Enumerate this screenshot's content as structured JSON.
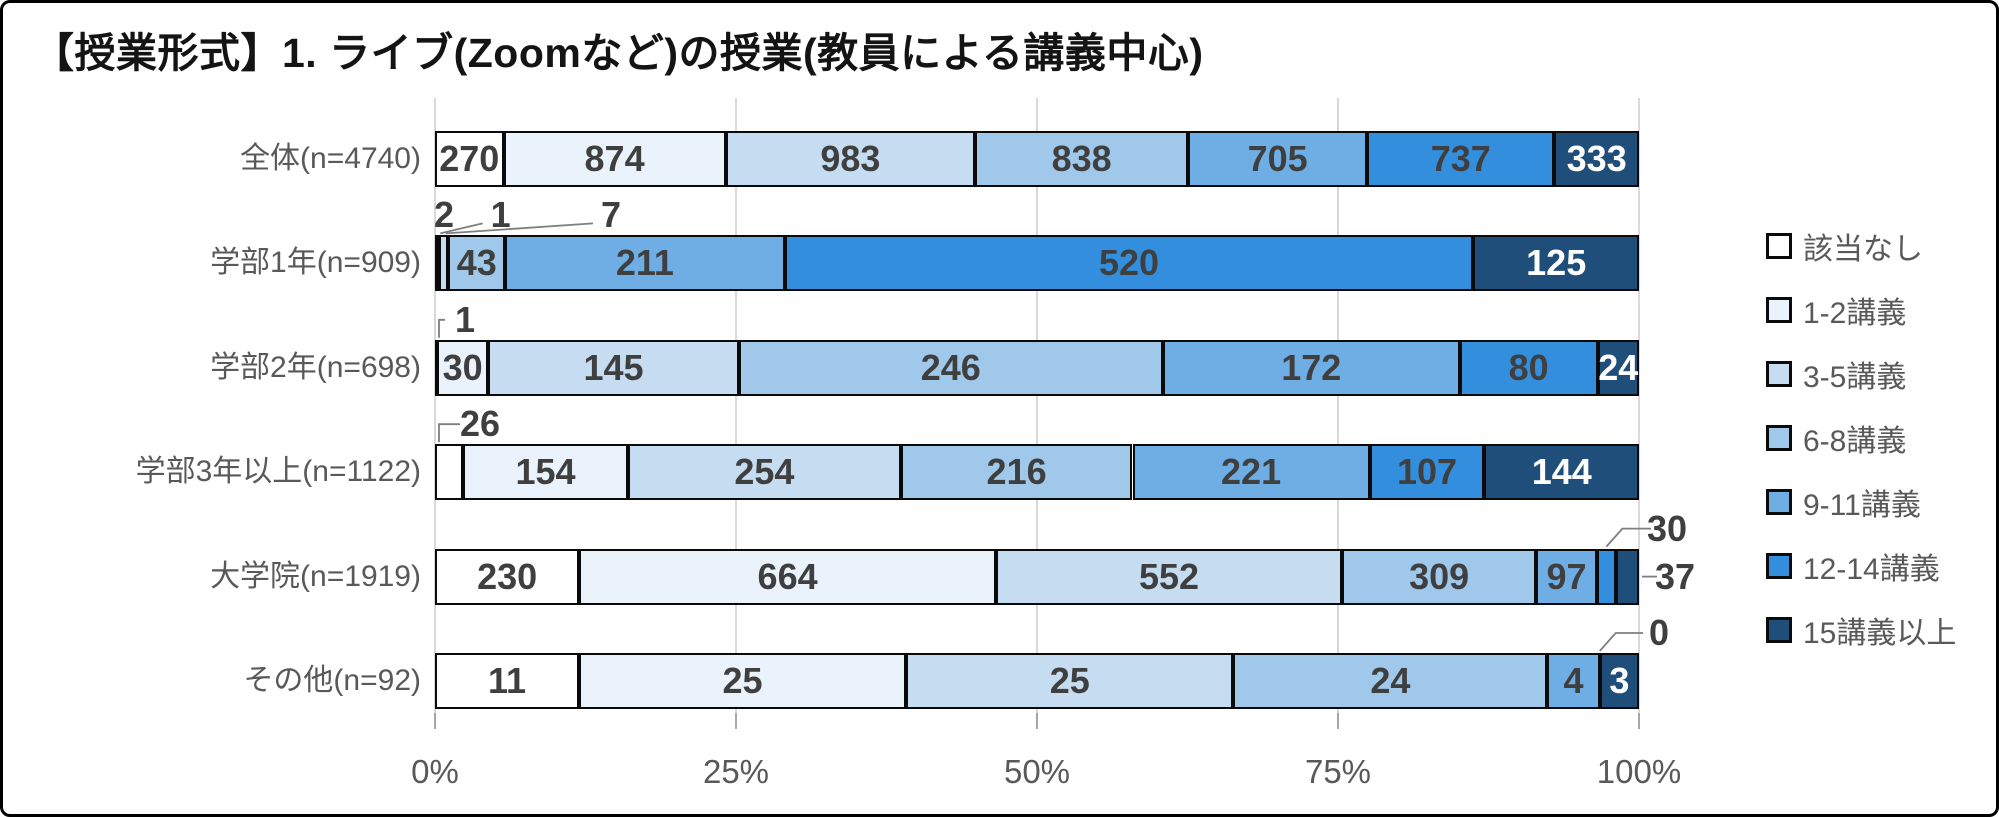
{
  "chart_data": {
    "type": "bar",
    "subtype": "horizontal-100pct-stacked",
    "title": "【授業形式】1. ライブ(Zoomなど)の授業(教員による講義中心)",
    "categories": [
      "全体(n=4740)",
      "学部1年(n=909)",
      "学部2年(n=698)",
      "学部3年以上(n=1122)",
      "大学院(n=1919)",
      "その他(n=92)"
    ],
    "category_totals": [
      4740,
      909,
      698,
      1122,
      1919,
      92
    ],
    "series": [
      {
        "name": "該当なし",
        "color": "#FFFFFF",
        "label_style": "dark",
        "values": [
          270,
          2,
          1,
          26,
          230,
          11
        ]
      },
      {
        "name": "1-2講義",
        "color": "#EAF3FB",
        "label_style": "dark",
        "values": [
          874,
          1,
          30,
          154,
          664,
          25
        ]
      },
      {
        "name": "3-5講義",
        "color": "#C6DCF1",
        "label_style": "dark",
        "values": [
          983,
          7,
          145,
          254,
          552,
          25
        ]
      },
      {
        "name": "6-8講義",
        "color": "#9FC8EB",
        "label_style": "dark",
        "values": [
          838,
          43,
          246,
          216,
          309,
          24
        ]
      },
      {
        "name": "9-11講義",
        "color": "#6FAEE4",
        "label_style": "dark",
        "values": [
          705,
          211,
          172,
          221,
          97,
          4
        ]
      },
      {
        "name": "12-14講義",
        "color": "#338FDD",
        "label_style": "dark",
        "values": [
          737,
          520,
          80,
          107,
          30,
          0
        ]
      },
      {
        "name": "15講義以上",
        "color": "#1E4E79",
        "label_style": "light",
        "values": [
          333,
          125,
          24,
          144,
          37,
          3
        ]
      }
    ],
    "x_ticks": [
      "0%",
      "25%",
      "50%",
      "75%",
      "100%"
    ],
    "xlim": [
      0,
      100
    ],
    "grid": "vertical",
    "legend_position": "right",
    "callouts": [
      {
        "category": 1,
        "series": 0,
        "placement": "above",
        "dx": 9,
        "leader": "none"
      },
      {
        "category": 1,
        "series": 1,
        "placement": "above",
        "dx": 63,
        "leader": "line"
      },
      {
        "category": 1,
        "series": 2,
        "placement": "above",
        "dx": 172,
        "leader": "line"
      },
      {
        "category": 2,
        "series": 0,
        "placement": "above",
        "dx": 30,
        "leader": "elbow"
      },
      {
        "category": 3,
        "series": 0,
        "placement": "above",
        "dx": 45,
        "leader": "elbow"
      },
      {
        "category": 4,
        "series": 5,
        "placement": "above-right",
        "dx": 19,
        "leader": "bend"
      },
      {
        "category": 4,
        "series": 6,
        "placement": "right",
        "dx": 36,
        "leader": "dash"
      },
      {
        "category": 5,
        "series": 5,
        "placement": "above-right",
        "dx": 11,
        "leader": "bend"
      }
    ]
  },
  "style": {
    "grid_color": "#D9D9D9",
    "tick_color": "#A6A6A6",
    "axis_text_color": "#595959",
    "segment_border_color": "#0A0A0A",
    "label_dark_color": "#3F3F3F",
    "label_light_color": "#FFFFFF",
    "leader_color": "#7F7F7F"
  }
}
